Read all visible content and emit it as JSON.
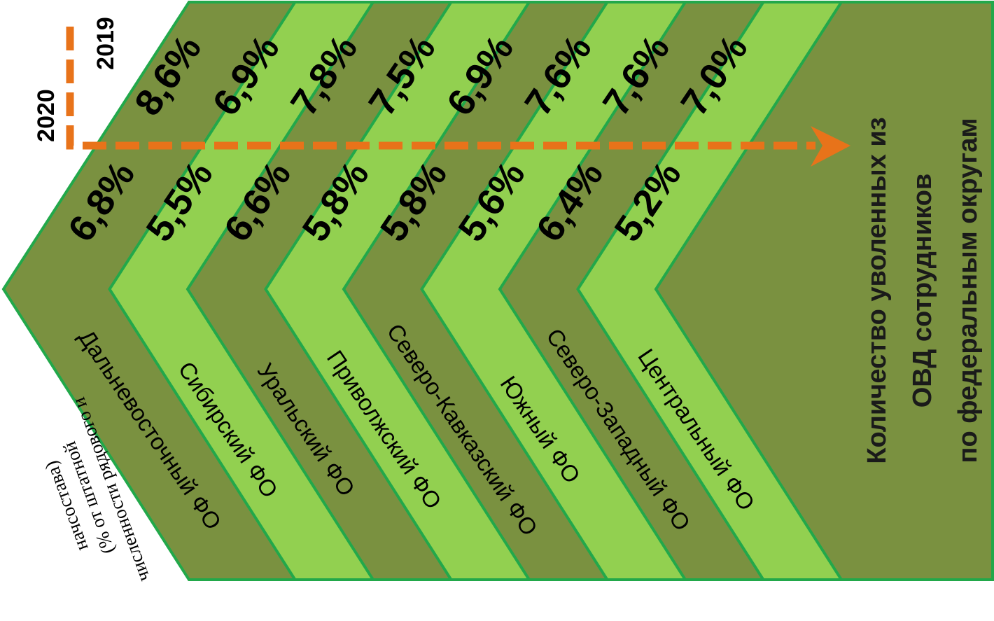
{
  "chart_data": {
    "type": "bar",
    "title_lines": [
      "Количество уволенных из",
      "ОВД сотрудников",
      "по федеральным округам"
    ],
    "note_lines": [
      "численности рядового и",
      "(% от штатной",
      "начсостава)"
    ],
    "categories": [
      "Дальневосточный ФО",
      "Сибирский ФО",
      "Уральский ФО",
      "Приволжский ФО",
      "Северо-Кавказский ФО",
      "Южный ФО",
      "Северо-Западный ФО",
      "Центральный ФО"
    ],
    "series": [
      {
        "name": "2019",
        "values": [
          "8,6%",
          "6,9%",
          "7,8%",
          "7,5%",
          "6,9%",
          "7,6%",
          "7,6%",
          "7,0%"
        ]
      },
      {
        "name": "2020",
        "values": [
          "6,8%",
          "5,5%",
          "6,6%",
          "5,8%",
          "5,8%",
          "5,6%",
          "6,4%",
          "5,2%"
        ]
      }
    ],
    "colors": {
      "dark": "#7A9140",
      "light": "#92D050",
      "border": "#22A84A",
      "arrow": "#E8731A"
    }
  }
}
